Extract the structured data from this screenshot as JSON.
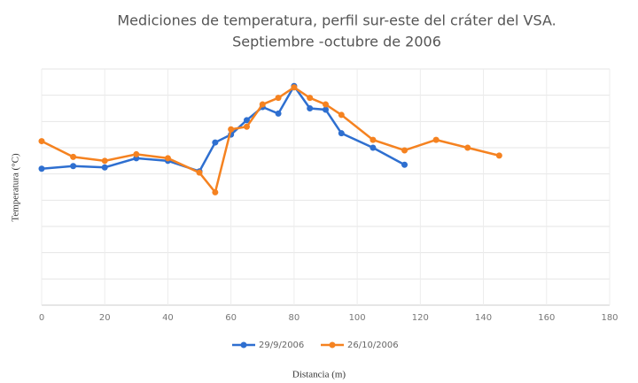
{
  "chart_data": {
    "type": "line",
    "title": "Mediciones de temperatura, perfil sur-este del cráter del VSA.",
    "subtitle": "Septiembre -octubre de 2006",
    "x_label": "Distancia (m)",
    "y_label": "Temperatura (°C)",
    "xlim": [
      0,
      180
    ],
    "xticks": [
      0,
      20,
      40,
      60,
      80,
      100,
      120,
      140,
      160,
      180
    ],
    "ylim": [
      0,
      9
    ],
    "yticks": [
      0,
      1,
      2,
      3,
      4,
      5,
      6,
      7,
      8,
      9
    ],
    "grid": true,
    "legend": "bottom",
    "series": [
      {
        "name": "29/9/2006",
        "color": "#2e6fd0",
        "x": [
          0,
          10,
          20,
          30,
          40,
          50,
          55,
          60,
          65,
          70,
          75,
          80,
          85,
          90,
          95,
          105,
          115
        ],
        "values": [
          5.2,
          5.3,
          5.25,
          5.6,
          5.5,
          5.1,
          6.2,
          6.5,
          7.05,
          7.55,
          7.3,
          8.35,
          7.5,
          7.45,
          6.55,
          6.0,
          5.35
        ]
      },
      {
        "name": "26/10/2006",
        "color": "#f58220",
        "x": [
          0,
          10,
          20,
          30,
          40,
          50,
          55,
          60,
          65,
          70,
          75,
          80,
          85,
          90,
          95,
          105,
          115,
          125,
          135,
          145
        ],
        "values": [
          6.25,
          5.65,
          5.5,
          5.75,
          5.6,
          5.05,
          4.3,
          6.7,
          6.8,
          7.65,
          7.9,
          8.3,
          7.9,
          7.65,
          7.25,
          6.3,
          5.9,
          6.3,
          6.0,
          5.7
        ]
      }
    ]
  }
}
